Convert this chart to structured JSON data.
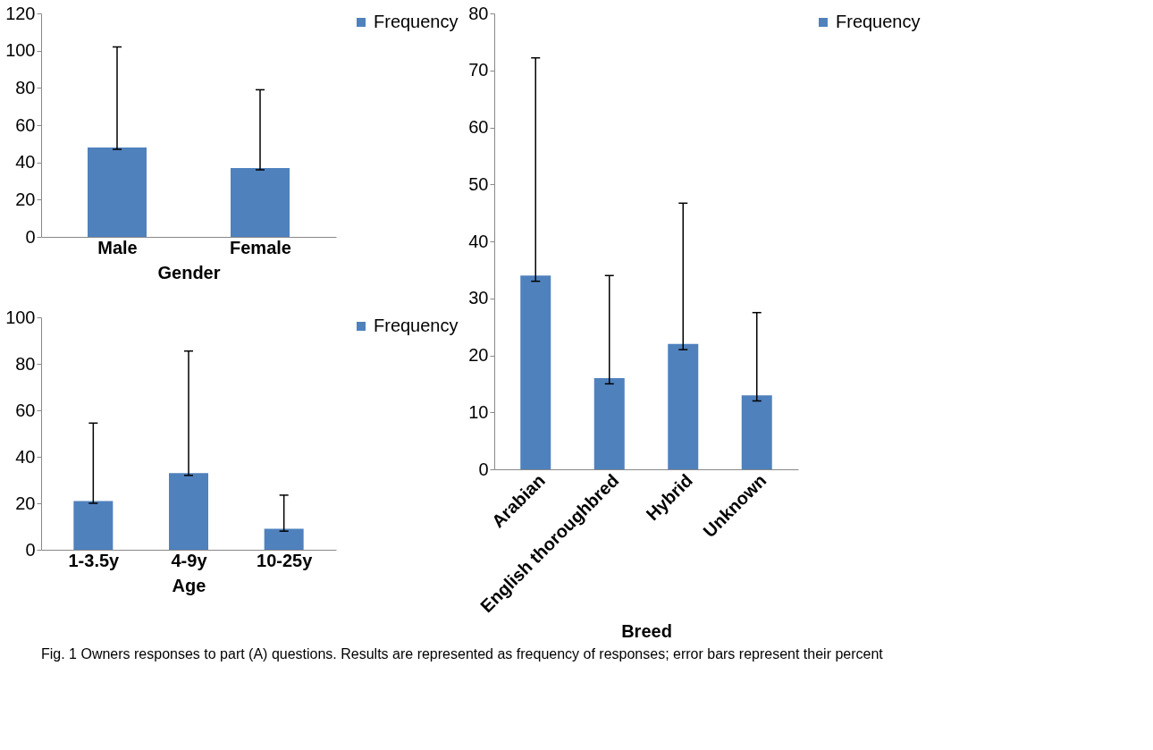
{
  "chart_data": [
    {
      "type": "bar",
      "xlabel": "Gender",
      "categories": [
        "Male",
        "Female"
      ],
      "series": [
        {
          "name": "Frequency",
          "color": "#4f81bd",
          "values": [
            48,
            37
          ],
          "errors": [
            [
              47,
              102
            ],
            [
              36,
              79
            ]
          ]
        }
      ],
      "ylim": [
        0,
        120
      ],
      "yticks": [
        0,
        20,
        40,
        60,
        80,
        100,
        120
      ],
      "grid": false,
      "legend": "right",
      "annotations": [
        "Fig. 1 Owners responses to part (A) questions. Results are represented as frequency of responses; error bars represent their percent"
      ]
    },
    {
      "type": "bar",
      "xlabel": "Age",
      "categories": [
        "1-3.5y",
        "4-9y",
        "10-25y"
      ],
      "series": [
        {
          "name": "Frequency",
          "color": "#4f81bd",
          "values": [
            21,
            33,
            9
          ],
          "errors": [
            [
              20,
              54.5
            ],
            [
              32,
              85.5
            ],
            [
              8,
              23.5
            ]
          ]
        }
      ],
      "ylim": [
        0,
        100
      ],
      "yticks": [
        0,
        20,
        40,
        60,
        80,
        100
      ],
      "grid": false,
      "legend": "right"
    },
    {
      "type": "bar",
      "xlabel": "Breed",
      "categories": [
        "Arabian",
        "English thoroughbred",
        "Hybrid",
        "Unknown"
      ],
      "series": [
        {
          "name": "Frequency",
          "color": "#4f81bd",
          "values": [
            34,
            16,
            22,
            13
          ],
          "errors": [
            [
              33,
              72.2
            ],
            [
              15,
              34
            ],
            [
              21,
              46.7
            ],
            [
              12,
              27.5
            ]
          ]
        }
      ],
      "ylim": [
        0,
        80
      ],
      "yticks": [
        0,
        10,
        20,
        30,
        40,
        50,
        60,
        70,
        80
      ],
      "grid": false,
      "legend": "right"
    }
  ]
}
